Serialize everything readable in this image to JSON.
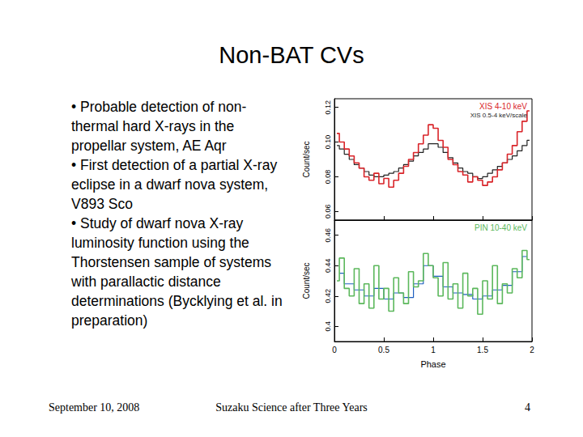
{
  "slide": {
    "title": "Non-BAT CVs",
    "bullets": [
      "Probable detection of non-thermal hard X-rays in the propellar system, AE Aqr",
      "First detection of a partial X-ray eclipse in a dwarf nova system, V893 Sco",
      "Study of dwarf nova X-ray luminosity function using the Thorstensen sample of systems with parallactic distance determinations (Bycklying et al. in preparation)"
    ],
    "footer": {
      "date": "September 10, 2008",
      "event": "Suzaku Science after Three Years",
      "page": "4"
    }
  },
  "chart_data": [
    {
      "type": "line",
      "ylabel": "Count/sec",
      "xlim": [
        0,
        2
      ],
      "xticks": [
        0,
        0.5,
        1,
        1.5,
        2
      ],
      "ylim": [
        0.055,
        0.125
      ],
      "yticks": [
        0.06,
        0.08,
        {
          "value": 0.1,
          "label": "0.10"
        },
        0.12
      ],
      "tick_labels": "y",
      "series": [
        {
          "name": "XIS 4-10 keV",
          "color": "#d9252a",
          "line_style": "steps",
          "x": [
            0.025,
            0.075,
            0.125,
            0.175,
            0.225,
            0.275,
            0.325,
            0.375,
            0.425,
            0.475,
            0.525,
            0.575,
            0.625,
            0.675,
            0.725,
            0.775,
            0.825,
            0.875,
            0.925,
            0.975,
            1.025,
            1.075,
            1.125,
            1.175,
            1.225,
            1.275,
            1.325,
            1.375,
            1.425,
            1.475,
            1.525,
            1.575,
            1.625,
            1.675,
            1.725,
            1.775,
            1.825,
            1.875,
            1.925,
            1.975
          ],
          "values": [
            0.105,
            0.1,
            0.096,
            0.092,
            0.088,
            0.085,
            0.08,
            0.078,
            0.082,
            0.076,
            0.079,
            0.074,
            0.078,
            0.082,
            0.086,
            0.09,
            0.094,
            0.099,
            0.104,
            0.11,
            0.108,
            0.101,
            0.097,
            0.09,
            0.087,
            0.083,
            0.081,
            0.077,
            0.08,
            0.078,
            0.075,
            0.077,
            0.08,
            0.084,
            0.088,
            0.093,
            0.098,
            0.106,
            0.112,
            0.118
          ]
        },
        {
          "name": "XIS 0.5-4 keV/scale",
          "color": "#222222",
          "line_style": "steps",
          "x": [
            0.025,
            0.075,
            0.125,
            0.175,
            0.225,
            0.275,
            0.325,
            0.375,
            0.425,
            0.475,
            0.525,
            0.575,
            0.625,
            0.675,
            0.725,
            0.775,
            0.825,
            0.875,
            0.925,
            0.975,
            1.025,
            1.075,
            1.125,
            1.175,
            1.225,
            1.275,
            1.325,
            1.375,
            1.425,
            1.475,
            1.525,
            1.575,
            1.625,
            1.675,
            1.725,
            1.775,
            1.825,
            1.875,
            1.925,
            1.975
          ],
          "values": [
            0.098,
            0.096,
            0.093,
            0.09,
            0.087,
            0.085,
            0.083,
            0.081,
            0.08,
            0.08,
            0.081,
            0.082,
            0.083,
            0.085,
            0.087,
            0.089,
            0.092,
            0.094,
            0.096,
            0.099,
            0.099,
            0.097,
            0.094,
            0.091,
            0.088,
            0.085,
            0.083,
            0.082,
            0.08,
            0.079,
            0.08,
            0.082,
            0.084,
            0.086,
            0.088,
            0.09,
            0.092,
            0.095,
            0.098,
            0.101
          ]
        }
      ]
    },
    {
      "type": "line",
      "xlabel": "Phase",
      "ylabel": "Count/sec",
      "xlim": [
        0,
        2
      ],
      "xticks": [
        0,
        0.5,
        1,
        1.5,
        2
      ],
      "ylim": [
        0.39,
        0.47
      ],
      "yticks": [
        0.4,
        0.42,
        0.44,
        0.46
      ],
      "series": [
        {
          "name": "PIN 10-40 keV",
          "color": "#5cb85c",
          "line_style": "steps",
          "x": [
            0.025,
            0.075,
            0.125,
            0.175,
            0.225,
            0.275,
            0.325,
            0.375,
            0.425,
            0.475,
            0.525,
            0.575,
            0.625,
            0.675,
            0.725,
            0.775,
            0.825,
            0.875,
            0.925,
            0.975,
            1.025,
            1.075,
            1.125,
            1.175,
            1.225,
            1.275,
            1.325,
            1.375,
            1.425,
            1.475,
            1.525,
            1.575,
            1.625,
            1.675,
            1.725,
            1.775,
            1.825,
            1.875,
            1.925,
            1.975
          ],
          "values": [
            0.43,
            0.445,
            0.425,
            0.42,
            0.438,
            0.415,
            0.428,
            0.412,
            0.44,
            0.418,
            0.425,
            0.41,
            0.432,
            0.422,
            0.415,
            0.436,
            0.426,
            0.43,
            0.448,
            0.44,
            0.432,
            0.42,
            0.442,
            0.418,
            0.428,
            0.412,
            0.435,
            0.42,
            0.425,
            0.408,
            0.43,
            0.418,
            0.44,
            0.415,
            0.428,
            0.422,
            0.438,
            0.432,
            0.45,
            0.444
          ]
        },
        {
          "color": "#1f5fbf",
          "line_style": "steps",
          "x": [
            0.05,
            0.15,
            0.25,
            0.35,
            0.45,
            0.55,
            0.65,
            0.75,
            0.85,
            0.95,
            1.05,
            1.15,
            1.25,
            1.35,
            1.45,
            1.55,
            1.65,
            1.75,
            1.85,
            1.95
          ],
          "values": [
            0.435,
            0.428,
            0.424,
            0.42,
            0.425,
            0.418,
            0.422,
            0.419,
            0.428,
            0.44,
            0.433,
            0.426,
            0.422,
            0.421,
            0.418,
            0.42,
            0.424,
            0.427,
            0.436,
            0.446
          ]
        }
      ]
    }
  ]
}
